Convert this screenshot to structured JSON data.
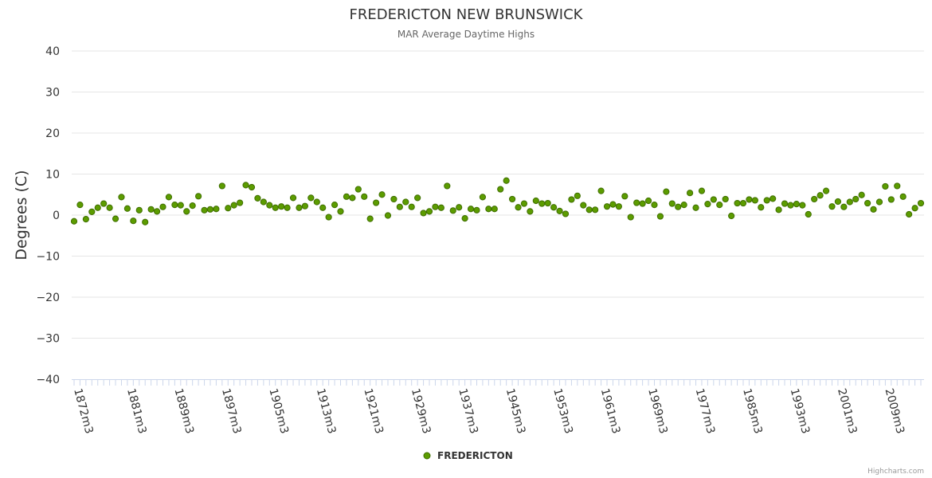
{
  "chart_data": {
    "type": "scatter",
    "title": "FREDERICTON NEW BRUNSWICK",
    "subtitle": "MAR Average Daytime Highs",
    "ylabel": "Degrees (C)",
    "xlabel": "",
    "ylim": [
      -40,
      40
    ],
    "yticks": [
      "40",
      "30",
      "20",
      "10",
      "0",
      "−10",
      "−20",
      "−30",
      "−40"
    ],
    "xtick_labels": [
      "1872m3",
      "1881m3",
      "1889m3",
      "1897m3",
      "1905m3",
      "1913m3",
      "1921m3",
      "1929m3",
      "1937m3",
      "1945m3",
      "1953m3",
      "1961m3",
      "1969m3",
      "1977m3",
      "1985m3",
      "1993m3",
      "2001m3",
      "2009m3"
    ],
    "grid": true,
    "legend": "bottom-center",
    "colors": {
      "marker_fill": "#5c9c00",
      "marker_stroke": "#3f6e00",
      "grid": "#e6e6e6",
      "axis": "#ccd6eb"
    },
    "series": [
      {
        "name": "FREDERICTON",
        "x_start": 1872,
        "values": [
          -1.5,
          2.5,
          -1.0,
          0.8,
          1.8,
          2.8,
          1.8,
          -0.9,
          4.4,
          1.6,
          -1.4,
          1.2,
          -1.7,
          1.4,
          0.9,
          2.0,
          4.4,
          2.5,
          2.4,
          0.9,
          2.3,
          4.6,
          1.2,
          1.4,
          1.5,
          7.1,
          1.7,
          2.4,
          3.0,
          7.3,
          6.8,
          4.1,
          3.2,
          2.4,
          1.8,
          2.1,
          1.8,
          4.2,
          1.8,
          2.2,
          4.2,
          3.2,
          1.8,
          -0.5,
          2.5,
          0.9,
          4.5,
          4.2,
          6.3,
          4.5,
          -0.9,
          3.0,
          5.0,
          -0.1,
          3.9,
          2.0,
          3.2,
          2.0,
          4.2,
          0.5,
          0.9,
          2.0,
          1.8,
          7.1,
          1.1,
          1.9,
          -0.8,
          1.5,
          1.2,
          4.4,
          1.5,
          1.5,
          6.3,
          8.4,
          3.9,
          1.9,
          2.8,
          0.9,
          3.5,
          2.8,
          2.9,
          1.9,
          1.0,
          0.3,
          3.8,
          4.7,
          2.4,
          1.3,
          1.3,
          5.9,
          2.1,
          2.6,
          2.1,
          4.6,
          -0.5,
          3.0,
          2.8,
          3.5,
          2.5,
          -0.3,
          5.7,
          2.8,
          2.0,
          2.5,
          5.4,
          1.8,
          5.9,
          2.7,
          3.8,
          2.5,
          3.9,
          -0.2,
          2.9,
          2.9,
          3.8,
          3.6,
          1.9,
          3.6,
          4.0,
          1.3,
          2.8,
          2.4,
          2.7,
          2.4,
          0.2,
          3.9,
          4.8,
          5.9,
          2.1,
          3.3,
          2.0,
          3.2,
          3.9,
          4.9,
          2.9,
          1.4,
          3.2,
          7.0,
          3.8,
          7.1,
          4.5,
          0.2,
          1.7,
          2.9
        ]
      }
    ]
  },
  "credits": "Highcharts.com"
}
